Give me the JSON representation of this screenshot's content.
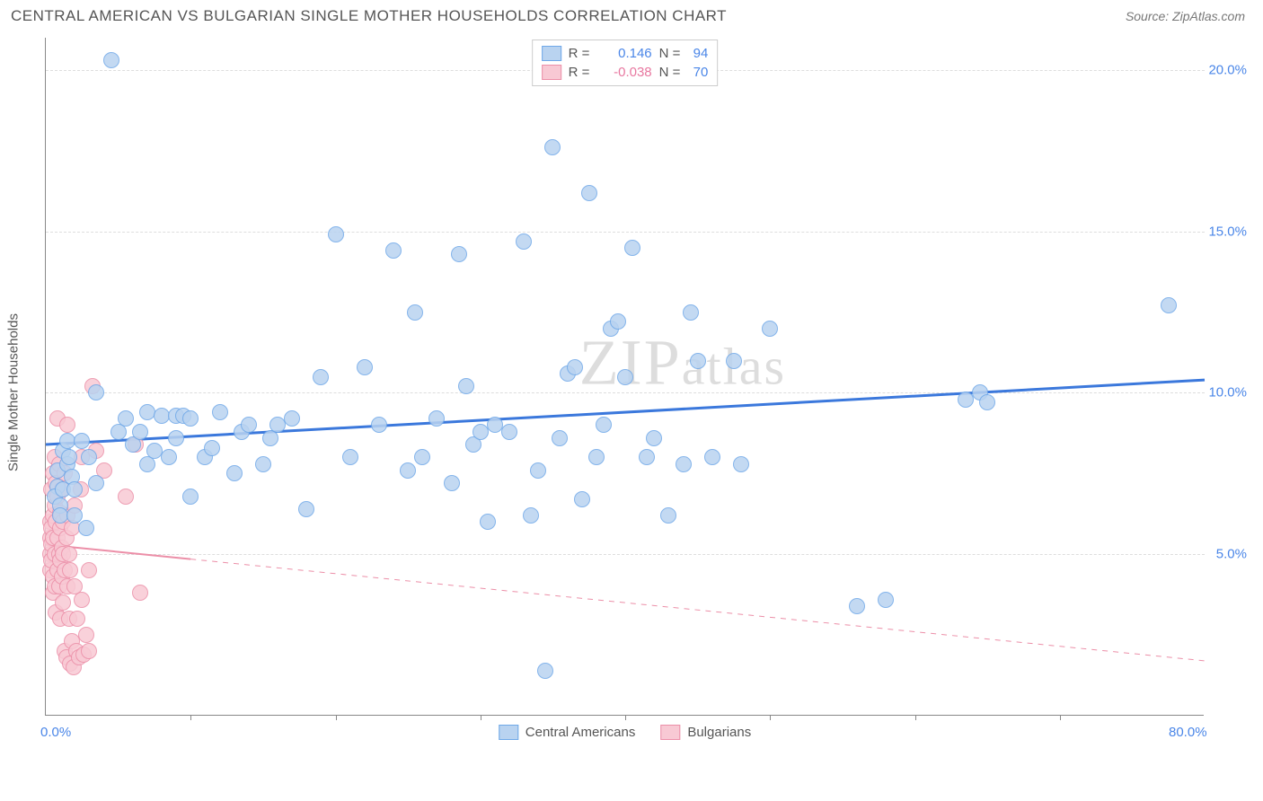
{
  "header": {
    "title": "CENTRAL AMERICAN VS BULGARIAN SINGLE MOTHER HOUSEHOLDS CORRELATION CHART",
    "source": "Source: ZipAtlas.com"
  },
  "chart": {
    "type": "scatter",
    "ylabel": "Single Mother Households",
    "watermark": "ZIPatlas",
    "background_color": "#ffffff",
    "grid_color": "#dddddd",
    "axis_color": "#888888",
    "xlim": [
      0,
      80
    ],
    "ylim": [
      0,
      21
    ],
    "xticks": [
      {
        "pos": 0,
        "label": "0.0%"
      },
      {
        "pos": 80,
        "label": "80.0%"
      }
    ],
    "xtick_marks": [
      10,
      20,
      30,
      40,
      50,
      60,
      70
    ],
    "yticks": [
      {
        "pos": 5,
        "label": "5.0%"
      },
      {
        "pos": 10,
        "label": "10.0%"
      },
      {
        "pos": 15,
        "label": "15.0%"
      },
      {
        "pos": 20,
        "label": "20.0%"
      }
    ],
    "marker_radius": 9,
    "series": [
      {
        "name": "Central Americans",
        "color_fill": "#b9d3f0",
        "color_stroke": "#6fa8e8",
        "r_value": "0.146",
        "r_color": "#4a86e8",
        "n_value": "94",
        "n_color": "#4a86e8",
        "trend": {
          "x1": 0,
          "y1": 8.4,
          "x2": 80,
          "y2": 10.4,
          "color": "#3b78dc",
          "width": 3,
          "dash": "none"
        },
        "points": [
          [
            0.8,
            7.1
          ],
          [
            0.8,
            7.6
          ],
          [
            0.6,
            6.8
          ],
          [
            1.0,
            6.5
          ],
          [
            1.0,
            6.2
          ],
          [
            1.2,
            7.0
          ],
          [
            1.2,
            8.2
          ],
          [
            1.5,
            8.5
          ],
          [
            1.5,
            7.8
          ],
          [
            1.6,
            8.0
          ],
          [
            1.8,
            7.4
          ],
          [
            2.0,
            7.0
          ],
          [
            2.0,
            6.2
          ],
          [
            2.5,
            8.5
          ],
          [
            2.8,
            5.8
          ],
          [
            3.0,
            8.0
          ],
          [
            3.5,
            7.2
          ],
          [
            3.5,
            10.0
          ],
          [
            4.5,
            20.3
          ],
          [
            5.0,
            8.8
          ],
          [
            5.5,
            9.2
          ],
          [
            6.0,
            8.4
          ],
          [
            6.5,
            8.8
          ],
          [
            7.0,
            7.8
          ],
          [
            7.0,
            9.4
          ],
          [
            7.5,
            8.2
          ],
          [
            8.0,
            9.3
          ],
          [
            8.5,
            8.0
          ],
          [
            9.0,
            9.3
          ],
          [
            9.0,
            8.6
          ],
          [
            9.5,
            9.3
          ],
          [
            10.0,
            6.8
          ],
          [
            10.0,
            9.2
          ],
          [
            11.0,
            8.0
          ],
          [
            11.5,
            8.3
          ],
          [
            12.0,
            9.4
          ],
          [
            13.0,
            7.5
          ],
          [
            13.5,
            8.8
          ],
          [
            14.0,
            9.0
          ],
          [
            15.0,
            7.8
          ],
          [
            15.5,
            8.6
          ],
          [
            16.0,
            9.0
          ],
          [
            17.0,
            9.2
          ],
          [
            18.0,
            6.4
          ],
          [
            19.0,
            10.5
          ],
          [
            20.0,
            14.9
          ],
          [
            21.0,
            8.0
          ],
          [
            22.0,
            10.8
          ],
          [
            23.0,
            9.0
          ],
          [
            24.0,
            14.4
          ],
          [
            25.0,
            7.6
          ],
          [
            25.5,
            12.5
          ],
          [
            26.0,
            8.0
          ],
          [
            27.0,
            9.2
          ],
          [
            28.0,
            7.2
          ],
          [
            28.5,
            14.3
          ],
          [
            29.0,
            10.2
          ],
          [
            29.5,
            8.4
          ],
          [
            30.0,
            8.8
          ],
          [
            30.5,
            6.0
          ],
          [
            31.0,
            9.0
          ],
          [
            32.0,
            8.8
          ],
          [
            33.0,
            14.7
          ],
          [
            33.5,
            6.2
          ],
          [
            34.0,
            7.6
          ],
          [
            34.5,
            1.4
          ],
          [
            35.0,
            17.6
          ],
          [
            35.5,
            8.6
          ],
          [
            36.0,
            10.6
          ],
          [
            36.5,
            10.8
          ],
          [
            37.0,
            6.7
          ],
          [
            37.5,
            16.2
          ],
          [
            38.0,
            8.0
          ],
          [
            38.5,
            9.0
          ],
          [
            39.0,
            12.0
          ],
          [
            39.5,
            12.2
          ],
          [
            40.0,
            10.5
          ],
          [
            40.5,
            14.5
          ],
          [
            41.5,
            8.0
          ],
          [
            42.0,
            8.6
          ],
          [
            43.0,
            6.2
          ],
          [
            44.0,
            7.8
          ],
          [
            44.5,
            12.5
          ],
          [
            45.0,
            11.0
          ],
          [
            46.0,
            8.0
          ],
          [
            47.5,
            11.0
          ],
          [
            48.0,
            7.8
          ],
          [
            50.0,
            12.0
          ],
          [
            56.0,
            3.4
          ],
          [
            58.0,
            3.6
          ],
          [
            63.5,
            9.8
          ],
          [
            64.5,
            10.0
          ],
          [
            65.0,
            9.7
          ],
          [
            77.5,
            12.7
          ]
        ]
      },
      {
        "name": "Bulgarians",
        "color_fill": "#f8c9d4",
        "color_stroke": "#ec8fa8",
        "r_value": "-0.038",
        "r_color": "#e878a0",
        "n_value": "70",
        "n_color": "#4a86e8",
        "trend": {
          "x1": 0,
          "y1": 5.3,
          "x2": 80,
          "y2": 1.7,
          "color": "#ec8fa8",
          "width": 2,
          "dash_solid_until": 10
        },
        "points": [
          [
            0.3,
            6.0
          ],
          [
            0.3,
            5.5
          ],
          [
            0.3,
            5.0
          ],
          [
            0.3,
            4.5
          ],
          [
            0.4,
            5.8
          ],
          [
            0.4,
            5.3
          ],
          [
            0.4,
            4.8
          ],
          [
            0.4,
            7.0
          ],
          [
            0.5,
            4.3
          ],
          [
            0.5,
            6.2
          ],
          [
            0.5,
            7.5
          ],
          [
            0.5,
            5.5
          ],
          [
            0.5,
            3.8
          ],
          [
            0.6,
            5.0
          ],
          [
            0.6,
            6.5
          ],
          [
            0.6,
            8.0
          ],
          [
            0.6,
            4.0
          ],
          [
            0.7,
            6.0
          ],
          [
            0.7,
            7.2
          ],
          [
            0.7,
            3.2
          ],
          [
            0.8,
            5.5
          ],
          [
            0.8,
            4.5
          ],
          [
            0.8,
            6.8
          ],
          [
            0.8,
            9.2
          ],
          [
            0.9,
            5.0
          ],
          [
            0.9,
            7.8
          ],
          [
            0.9,
            4.0
          ],
          [
            1.0,
            5.8
          ],
          [
            1.0,
            4.8
          ],
          [
            1.0,
            6.3
          ],
          [
            1.0,
            3.0
          ],
          [
            1.1,
            5.2
          ],
          [
            1.1,
            7.0
          ],
          [
            1.1,
            4.3
          ],
          [
            1.2,
            6.0
          ],
          [
            1.2,
            3.5
          ],
          [
            1.2,
            5.0
          ],
          [
            1.3,
            4.5
          ],
          [
            1.3,
            7.5
          ],
          [
            1.3,
            2.0
          ],
          [
            1.4,
            5.5
          ],
          [
            1.4,
            1.8
          ],
          [
            1.5,
            9.0
          ],
          [
            1.5,
            4.0
          ],
          [
            1.5,
            6.2
          ],
          [
            1.6,
            3.0
          ],
          [
            1.6,
            5.0
          ],
          [
            1.7,
            1.6
          ],
          [
            1.7,
            4.5
          ],
          [
            1.8,
            2.3
          ],
          [
            1.8,
            5.8
          ],
          [
            1.9,
            1.5
          ],
          [
            2.0,
            4.0
          ],
          [
            2.0,
            6.5
          ],
          [
            2.1,
            2.0
          ],
          [
            2.2,
            3.0
          ],
          [
            2.3,
            1.8
          ],
          [
            2.4,
            7.0
          ],
          [
            2.5,
            8.0
          ],
          [
            2.5,
            3.6
          ],
          [
            2.6,
            1.9
          ],
          [
            2.8,
            2.5
          ],
          [
            3.0,
            4.5
          ],
          [
            3.0,
            2.0
          ],
          [
            3.2,
            10.2
          ],
          [
            3.5,
            8.2
          ],
          [
            4.0,
            7.6
          ],
          [
            5.5,
            6.8
          ],
          [
            6.2,
            8.4
          ],
          [
            6.5,
            3.8
          ]
        ]
      }
    ],
    "legend_bottom": [
      {
        "label": "Central Americans",
        "fill": "#b9d3f0",
        "stroke": "#6fa8e8"
      },
      {
        "label": "Bulgarians",
        "fill": "#f8c9d4",
        "stroke": "#ec8fa8"
      }
    ]
  }
}
